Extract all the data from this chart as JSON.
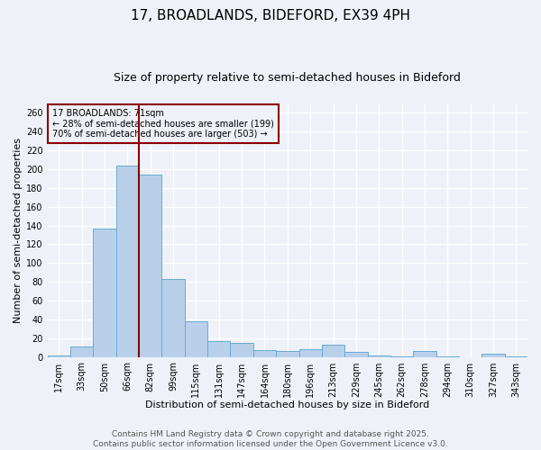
{
  "title": "17, BROADLANDS, BIDEFORD, EX39 4PH",
  "subtitle": "Size of property relative to semi-detached houses in Bideford",
  "xlabel": "Distribution of semi-detached houses by size in Bideford",
  "ylabel": "Number of semi-detached properties",
  "categories": [
    "17sqm",
    "33sqm",
    "50sqm",
    "66sqm",
    "82sqm",
    "99sqm",
    "115sqm",
    "131sqm",
    "147sqm",
    "164sqm",
    "180sqm",
    "196sqm",
    "213sqm",
    "229sqm",
    "245sqm",
    "262sqm",
    "278sqm",
    "294sqm",
    "310sqm",
    "327sqm",
    "343sqm"
  ],
  "values": [
    2,
    11,
    137,
    204,
    194,
    83,
    38,
    17,
    15,
    7,
    6,
    8,
    13,
    5,
    2,
    1,
    6,
    1,
    0,
    3,
    1
  ],
  "bar_color": "#b8d0ea",
  "bar_edge_color": "#6aaad4",
  "bar_width": 1.0,
  "red_line_x": 3.5,
  "annotation_text": "17 BROADLANDS: 71sqm\n← 28% of semi-detached houses are smaller (199)\n70% of semi-detached houses are larger (503) →",
  "ylim": [
    0,
    270
  ],
  "yticks": [
    0,
    20,
    40,
    60,
    80,
    100,
    120,
    140,
    160,
    180,
    200,
    220,
    240,
    260
  ],
  "footnote1": "Contains HM Land Registry data © Crown copyright and database right 2025.",
  "footnote2": "Contains public sector information licensed under the Open Government Licence v3.0.",
  "bg_color": "#eef2f8",
  "grid_color": "#ffffff",
  "title_fontsize": 11,
  "subtitle_fontsize": 9,
  "axis_label_fontsize": 8,
  "tick_fontsize": 7,
  "annotation_fontsize": 7,
  "footnote_fontsize": 6.5
}
